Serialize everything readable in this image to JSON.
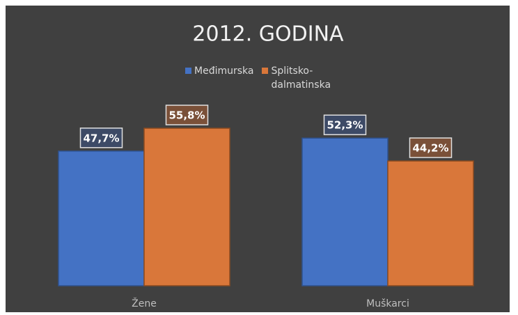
{
  "chart_data": {
    "type": "bar",
    "title": "2012. GODINA",
    "categories": [
      "Žene",
      "Muškarci"
    ],
    "series": [
      {
        "name": "Međimurska",
        "color": "#4472c4",
        "values": [
          47.7,
          52.3
        ],
        "value_labels": [
          "47,7%",
          "52,3%"
        ]
      },
      {
        "name": "Splitsko-dalmatinska",
        "color": "#d9773a",
        "values": [
          55.8,
          44.2
        ],
        "value_labels": [
          "55,8%",
          "44,2%"
        ]
      }
    ],
    "legend": "top"
  }
}
